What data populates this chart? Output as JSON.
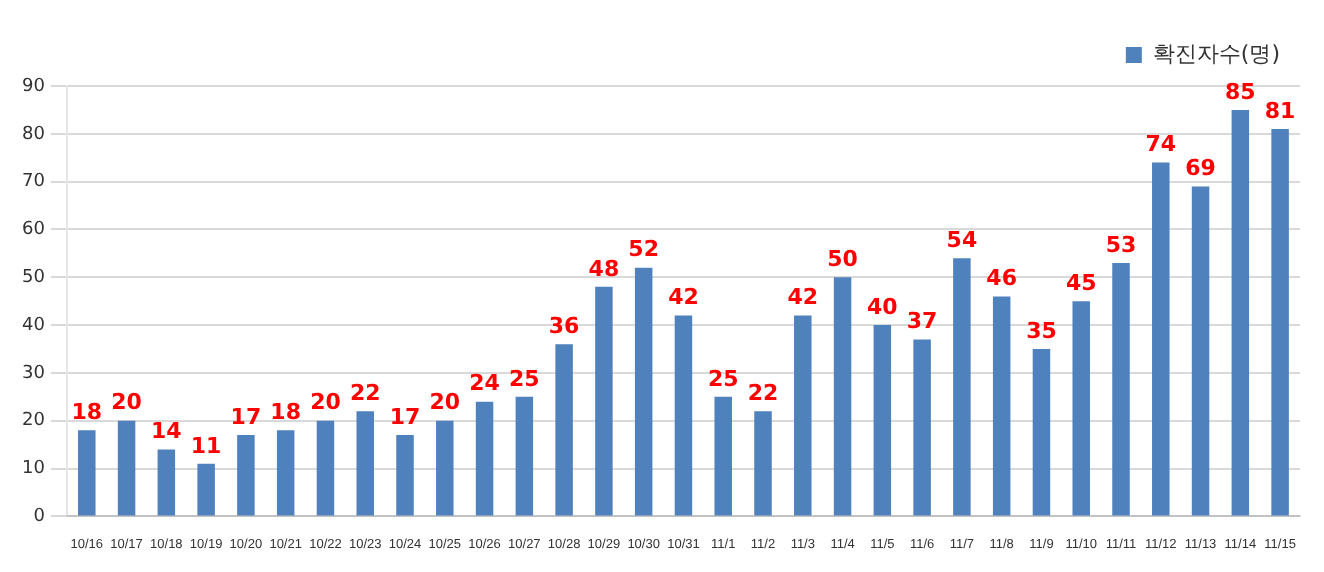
{
  "chart_data": {
    "type": "bar",
    "categories": [
      "10/16",
      "10/17",
      "10/18",
      "10/19",
      "10/20",
      "10/21",
      "10/22",
      "10/23",
      "10/24",
      "10/25",
      "10/26",
      "10/27",
      "10/28",
      "10/29",
      "10/30",
      "10/31",
      "11/1",
      "11/2",
      "11/3",
      "11/4",
      "11/5",
      "11/6",
      "11/7",
      "11/8",
      "11/9",
      "11/10",
      "11/11",
      "11/12",
      "11/13",
      "11/14",
      "11/15"
    ],
    "series": [
      {
        "name": "확진자수(명)",
        "color": "#4f81bd",
        "values": [
          18,
          20,
          14,
          11,
          17,
          18,
          20,
          22,
          17,
          20,
          24,
          25,
          36,
          48,
          52,
          42,
          25,
          22,
          42,
          50,
          40,
          37,
          54,
          46,
          35,
          45,
          53,
          74,
          69,
          85,
          81
        ]
      }
    ],
    "ylim": [
      0,
      90
    ],
    "yticks": [
      0,
      10,
      20,
      30,
      40,
      50,
      60,
      70,
      80,
      90
    ],
    "grid": "y",
    "legend": "top right",
    "data_labels": true
  }
}
